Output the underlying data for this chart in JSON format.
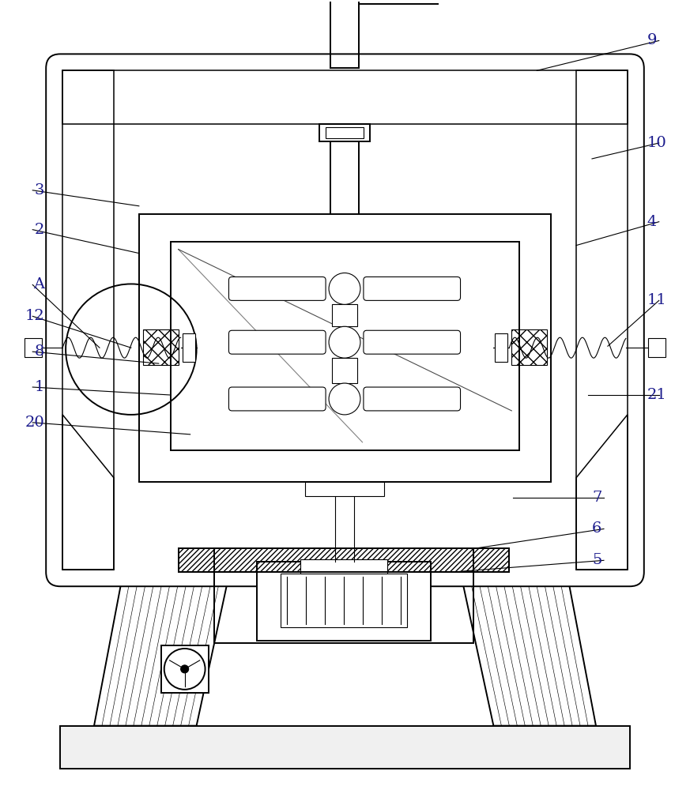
{
  "bg_color": "#ffffff",
  "line_color": "#000000",
  "label_color": "#1a1a8c",
  "lw_main": 1.4,
  "lw_thin": 0.8,
  "lw_med": 1.1
}
